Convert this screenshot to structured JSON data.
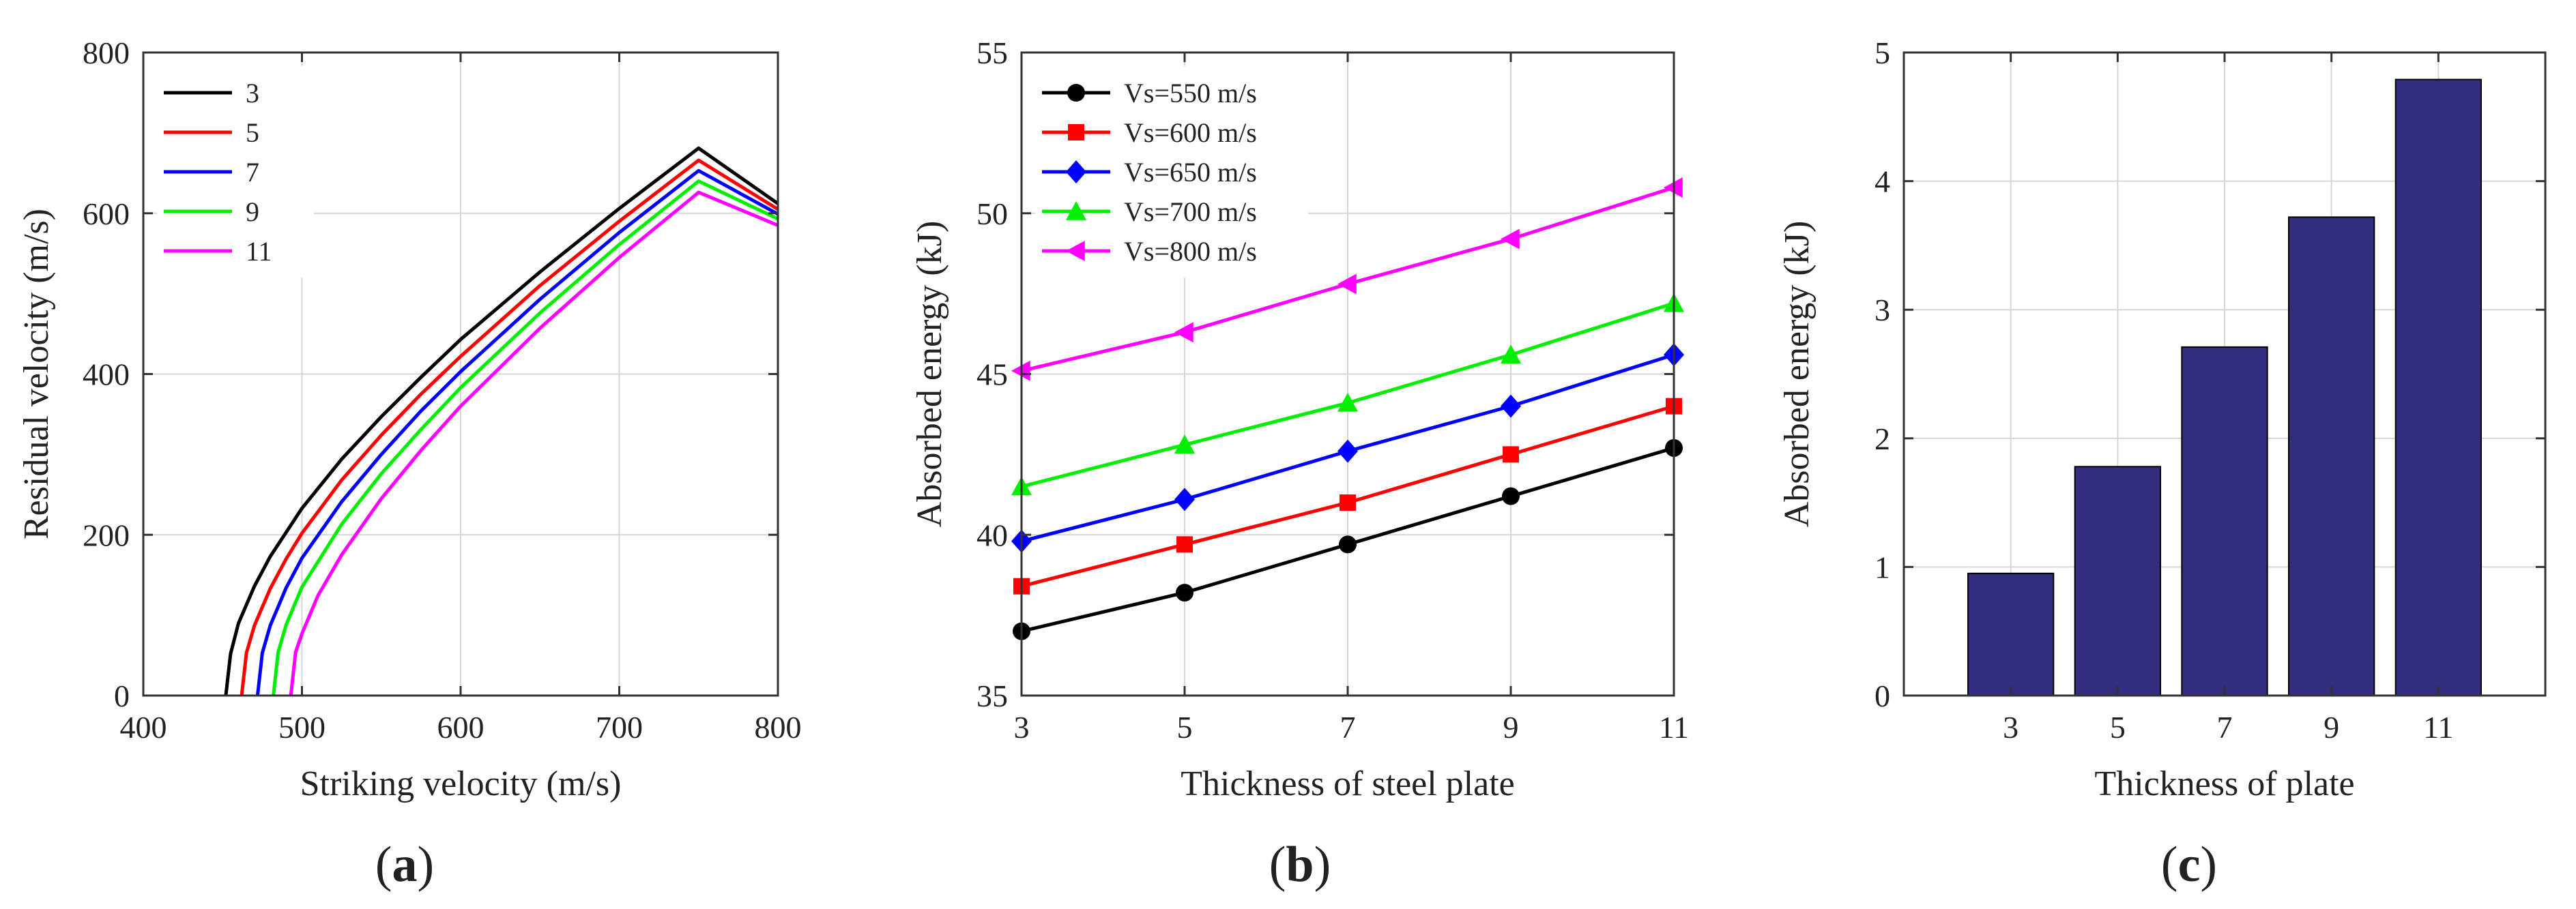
{
  "panels": [
    {
      "label_prefix": "(",
      "label_letter": "a",
      "label_suffix": ")"
    },
    {
      "label_prefix": "(",
      "label_letter": "b",
      "label_suffix": ")"
    },
    {
      "label_prefix": "(",
      "label_letter": "c",
      "label_suffix": ")"
    }
  ],
  "chart_data": [
    {
      "type": "line",
      "title": "",
      "xlabel": "Striking velocity (m/s)",
      "ylabel": "Residual velocity (m/s)",
      "xlim": [
        400,
        800
      ],
      "ylim": [
        0,
        800
      ],
      "xticks": [
        400,
        500,
        600,
        700,
        800
      ],
      "yticks": [
        0,
        200,
        400,
        600,
        800
      ],
      "grid": true,
      "legend_position": "top-left",
      "series": [
        {
          "name": "3",
          "color": "#000000",
          "x": [
            452,
            455,
            460,
            470,
            480,
            500,
            525,
            550,
            575,
            600,
            650,
            700,
            750,
            800
          ],
          "y": [
            0,
            52,
            90,
            136,
            173,
            233,
            294,
            347,
            396,
            443,
            527,
            606,
            681,
            612
          ]
        },
        {
          "name": "5",
          "color": "#ff0000",
          "x": [
            462,
            465,
            470,
            480,
            490,
            500,
            525,
            550,
            575,
            600,
            650,
            700,
            750,
            800
          ],
          "y": [
            0,
            53,
            87,
            133,
            170,
            202,
            268,
            324,
            375,
            422,
            510,
            590,
            666,
            605
          ]
        },
        {
          "name": "7",
          "color": "#0000ff",
          "x": [
            472,
            475,
            480,
            490,
            500,
            525,
            550,
            575,
            600,
            650,
            700,
            750,
            800
          ],
          "y": [
            0,
            53,
            87,
            134,
            171,
            241,
            300,
            354,
            403,
            493,
            576,
            653,
            599
          ]
        },
        {
          "name": "9",
          "color": "#00ee00",
          "x": [
            482,
            485,
            490,
            500,
            525,
            550,
            575,
            600,
            650,
            700,
            750,
            800
          ],
          "y": [
            0,
            54,
            88,
            135,
            213,
            276,
            331,
            383,
            476,
            561,
            640,
            593
          ]
        },
        {
          "name": "11",
          "color": "#ff00ff",
          "x": [
            493,
            496,
            500,
            510,
            525,
            550,
            575,
            600,
            650,
            700,
            750,
            800
          ],
          "y": [
            0,
            54,
            77,
            124,
            175,
            245,
            305,
            360,
            457,
            545,
            626,
            585
          ]
        }
      ]
    },
    {
      "type": "line",
      "title": "",
      "xlabel": "Thickness of steel plate",
      "ylabel": "Absorbed energy (kJ)",
      "xlim": [
        3,
        11
      ],
      "ylim": [
        35,
        55
      ],
      "xticks": [
        3,
        5,
        7,
        9,
        11
      ],
      "yticks": [
        35,
        40,
        45,
        50,
        55
      ],
      "grid": true,
      "legend_position": "top-left",
      "x": [
        3,
        5,
        7,
        9,
        11
      ],
      "series": [
        {
          "name": "Vs=550 m/s",
          "color": "#000000",
          "marker": "circle",
          "values": [
            37.0,
            38.2,
            39.7,
            41.2,
            42.7
          ]
        },
        {
          "name": "Vs=600 m/s",
          "color": "#ff0000",
          "marker": "square",
          "values": [
            38.4,
            39.7,
            41.0,
            42.5,
            44.0
          ]
        },
        {
          "name": "Vs=650 m/s",
          "color": "#0000ff",
          "marker": "diamond",
          "values": [
            39.8,
            41.1,
            42.6,
            44.0,
            45.6
          ]
        },
        {
          "name": "Vs=700 m/s",
          "color": "#00ee00",
          "marker": "triangle-up",
          "values": [
            41.5,
            42.8,
            44.1,
            45.6,
            47.2
          ]
        },
        {
          "name": "Vs=800 m/s",
          "color": "#ff00ff",
          "marker": "triangle-left",
          "values": [
            45.1,
            46.3,
            47.8,
            49.2,
            50.8
          ]
        }
      ]
    },
    {
      "type": "bar",
      "title": "",
      "xlabel": "Thickness of plate",
      "ylabel": "Absorbed energy (kJ)",
      "ylim": [
        0,
        5
      ],
      "yticks": [
        0,
        1,
        2,
        3,
        4,
        5
      ],
      "grid": true,
      "bar_color": "#332d80",
      "categories": [
        "3",
        "5",
        "7",
        "9",
        "11"
      ],
      "values": [
        0.95,
        1.78,
        2.71,
        3.72,
        4.79
      ]
    }
  ]
}
